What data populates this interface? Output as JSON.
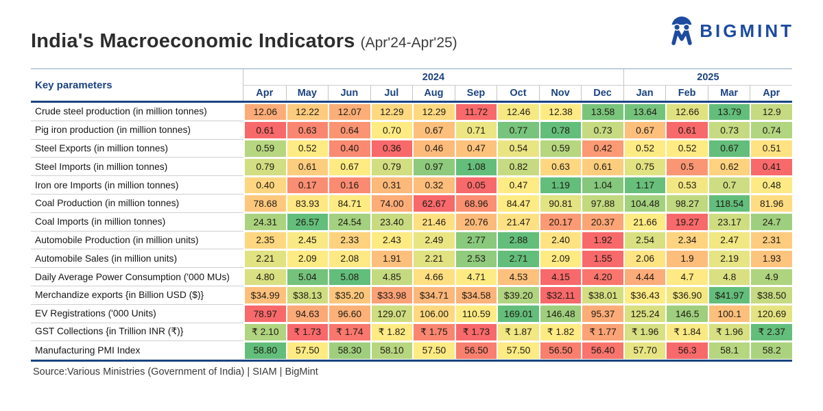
{
  "header": {
    "title": "India's Macroeconomic Indicators",
    "subtitle": "(Apr'24-Apr'25)",
    "logo_text": "BIGMINT"
  },
  "table": {
    "corner_label": "Key parameters",
    "year_groups": [
      {
        "label": "2024",
        "span": 9
      },
      {
        "label": "2025",
        "span": 4
      }
    ],
    "months": [
      "Apr",
      "May",
      "Jun",
      "Jul",
      "Aug",
      "Sep",
      "Oct",
      "Nov",
      "Dec",
      "Jan",
      "Feb",
      "Mar",
      "Apr"
    ]
  },
  "chart_data": {
    "type": "heatmap",
    "title": "India's Macroeconomic Indicators (Apr'24-Apr'25)",
    "color_scale": "row-wise red(min) to yellow(median) to green(max)",
    "columns": [
      "Apr'24",
      "May'24",
      "Jun'24",
      "Jul'24",
      "Aug'24",
      "Sep'24",
      "Oct'24",
      "Nov'24",
      "Dec'24",
      "Jan'25",
      "Feb'25",
      "Mar'25",
      "Apr'25"
    ],
    "rows": [
      {
        "label": "Crude steel production (in million tonnes)",
        "values": [
          12.06,
          12.22,
          12.07,
          12.29,
          12.29,
          11.72,
          12.46,
          12.38,
          13.58,
          13.64,
          12.66,
          13.79,
          12.9
        ],
        "display": [
          "12.06",
          "12.22",
          "12.07",
          "12.29",
          "12.29",
          "11.72",
          "12.46",
          "12.38",
          "13.58",
          "13.64",
          "12.66",
          "13.79",
          "12.9"
        ]
      },
      {
        "label": "Pig iron production (in million tonnes)",
        "values": [
          0.61,
          0.63,
          0.64,
          0.7,
          0.67,
          0.71,
          0.77,
          0.78,
          0.73,
          0.67,
          0.61,
          0.73,
          0.74
        ],
        "display": [
          "0.61",
          "0.63",
          "0.64",
          "0.70",
          "0.67",
          "0.71",
          "0.77",
          "0.78",
          "0.73",
          "0.67",
          "0.61",
          "0.73",
          "0.74"
        ]
      },
      {
        "label": "Steel Exports (in million tonnes)",
        "values": [
          0.59,
          0.52,
          0.4,
          0.36,
          0.46,
          0.47,
          0.54,
          0.59,
          0.42,
          0.52,
          0.52,
          0.67,
          0.51
        ],
        "display": [
          "0.59",
          "0.52",
          "0.40",
          "0.36",
          "0.46",
          "0.47",
          "0.54",
          "0.59",
          "0.42",
          "0.52",
          "0.52",
          "0.67",
          "0.51"
        ]
      },
      {
        "label": "Steel Imports (in million tonnes)",
        "values": [
          0.79,
          0.61,
          0.67,
          0.79,
          0.97,
          1.08,
          0.82,
          0.63,
          0.61,
          0.75,
          0.5,
          0.62,
          0.41
        ],
        "display": [
          "0.79",
          "0.61",
          "0.67",
          "0.79",
          "0.97",
          "1.08",
          "0.82",
          "0.63",
          "0.61",
          "0.75",
          "0.5",
          "0.62",
          "0.41"
        ]
      },
      {
        "label": "Iron ore Imports (in million tonnes)",
        "values": [
          0.4,
          0.17,
          0.16,
          0.31,
          0.32,
          0.05,
          0.47,
          1.19,
          1.04,
          1.17,
          0.53,
          0.7,
          0.48
        ],
        "display": [
          "0.40",
          "0.17",
          "0.16",
          "0.31",
          "0.32",
          "0.05",
          "0.47",
          "1.19",
          "1.04",
          "1.17",
          "0.53",
          "0.7",
          "0.48"
        ]
      },
      {
        "label": "Coal Production (in million tonnes)",
        "values": [
          78.68,
          83.93,
          84.71,
          74.0,
          62.67,
          68.96,
          84.47,
          90.81,
          97.88,
          104.48,
          98.27,
          118.54,
          81.96
        ],
        "display": [
          "78.68",
          "83.93",
          "84.71",
          "74.00",
          "62.67",
          "68.96",
          "84.47",
          "90.81",
          "97.88",
          "104.48",
          "98.27",
          "118.54",
          "81.96"
        ]
      },
      {
        "label": "Coal Imports (in million tonnes)",
        "values": [
          24.31,
          26.57,
          24.54,
          23.4,
          21.46,
          20.76,
          21.47,
          20.17,
          20.37,
          21.66,
          19.27,
          23.17,
          24.7
        ],
        "display": [
          "24.31",
          "26.57",
          "24.54",
          "23.40",
          "21.46",
          "20.76",
          "21.47",
          "20.17",
          "20.37",
          "21.66",
          "19.27",
          "23.17",
          "24.7"
        ]
      },
      {
        "label": "Automobile Production (in million units)",
        "values": [
          2.35,
          2.45,
          2.33,
          2.43,
          2.49,
          2.77,
          2.88,
          2.4,
          1.92,
          2.54,
          2.34,
          2.47,
          2.31
        ],
        "display": [
          "2.35",
          "2.45",
          "2.33",
          "2.43",
          "2.49",
          "2.77",
          "2.88",
          "2.40",
          "1.92",
          "2.54",
          "2.34",
          "2.47",
          "2.31"
        ]
      },
      {
        "label": "Automobile Sales (in million units)",
        "values": [
          2.21,
          2.09,
          2.08,
          1.91,
          2.21,
          2.53,
          2.71,
          2.09,
          1.55,
          2.06,
          1.9,
          2.19,
          1.93
        ],
        "display": [
          "2.21",
          "2.09",
          "2.08",
          "1.91",
          "2.21",
          "2.53",
          "2.71",
          "2.09",
          "1.55",
          "2.06",
          "1.9",
          "2.19",
          "1.93"
        ]
      },
      {
        "label": "Daily Average Power Consumption ('000 MUs)",
        "values": [
          4.8,
          5.04,
          5.08,
          4.85,
          4.66,
          4.71,
          4.53,
          4.15,
          4.2,
          4.44,
          4.7,
          4.8,
          4.9
        ],
        "display": [
          "4.80",
          "5.04",
          "5.08",
          "4.85",
          "4.66",
          "4.71",
          "4.53",
          "4.15",
          "4.20",
          "4.44",
          "4.7",
          "4.8",
          "4.9"
        ]
      },
      {
        "label": "Merchandize exports {in Billion USD ($)}",
        "values": [
          34.99,
          38.13,
          35.2,
          33.98,
          34.71,
          34.58,
          39.2,
          32.11,
          38.01,
          36.43,
          36.9,
          41.97,
          38.5
        ],
        "display": [
          "$34.99",
          "$38.13",
          "$35.20",
          "$33.98",
          "$34.71",
          "$34.58",
          "$39.20",
          "$32.11",
          "$38.01",
          "$36.43",
          "$36.90",
          "$41.97",
          "$38.50"
        ]
      },
      {
        "label": "EV Registrations ('000 Units)",
        "values": [
          78.97,
          94.63,
          96.6,
          129.07,
          106.0,
          110.59,
          169.01,
          146.48,
          95.37,
          125.24,
          146.5,
          100.1,
          120.69
        ],
        "display": [
          "78.97",
          "94.63",
          "96.60",
          "129.07",
          "106.00",
          "110.59",
          "169.01",
          "146.48",
          "95.37",
          "125.24",
          "146.5",
          "100.1",
          "120.69"
        ]
      },
      {
        "label": "GST Collections {in Trillion INR (₹)}",
        "values": [
          2.1,
          1.73,
          1.74,
          1.82,
          1.75,
          1.73,
          1.87,
          1.82,
          1.77,
          1.96,
          1.84,
          1.96,
          2.37
        ],
        "display": [
          "₹ 2.10",
          "₹ 1.73",
          "₹ 1.74",
          "₹ 1.82",
          "₹ 1.75",
          "₹ 1.73",
          "₹ 1.87",
          "₹ 1.82",
          "₹ 1.77",
          "₹ 1.96",
          "₹ 1.84",
          "₹ 1.96",
          "₹ 2.37"
        ]
      },
      {
        "label": "Manufacturing PMI Index",
        "values": [
          58.8,
          57.5,
          58.3,
          58.1,
          57.5,
          56.5,
          57.5,
          56.5,
          56.4,
          57.7,
          56.3,
          58.1,
          58.2
        ],
        "display": [
          "58.80",
          "57.50",
          "58.30",
          "58.10",
          "57.50",
          "56.50",
          "57.50",
          "56.50",
          "56.40",
          "57.70",
          "56.3",
          "58.1",
          "58.2"
        ]
      }
    ]
  },
  "colors": {
    "scale_min": "#F8696B",
    "scale_mid": "#FFEB84",
    "scale_max": "#63BE7B",
    "accent_navy": "#1B4380",
    "logo_blue": "#1D4BA0"
  },
  "source": "Source:Various Ministries (Government of India) | SIAM | BigMint"
}
